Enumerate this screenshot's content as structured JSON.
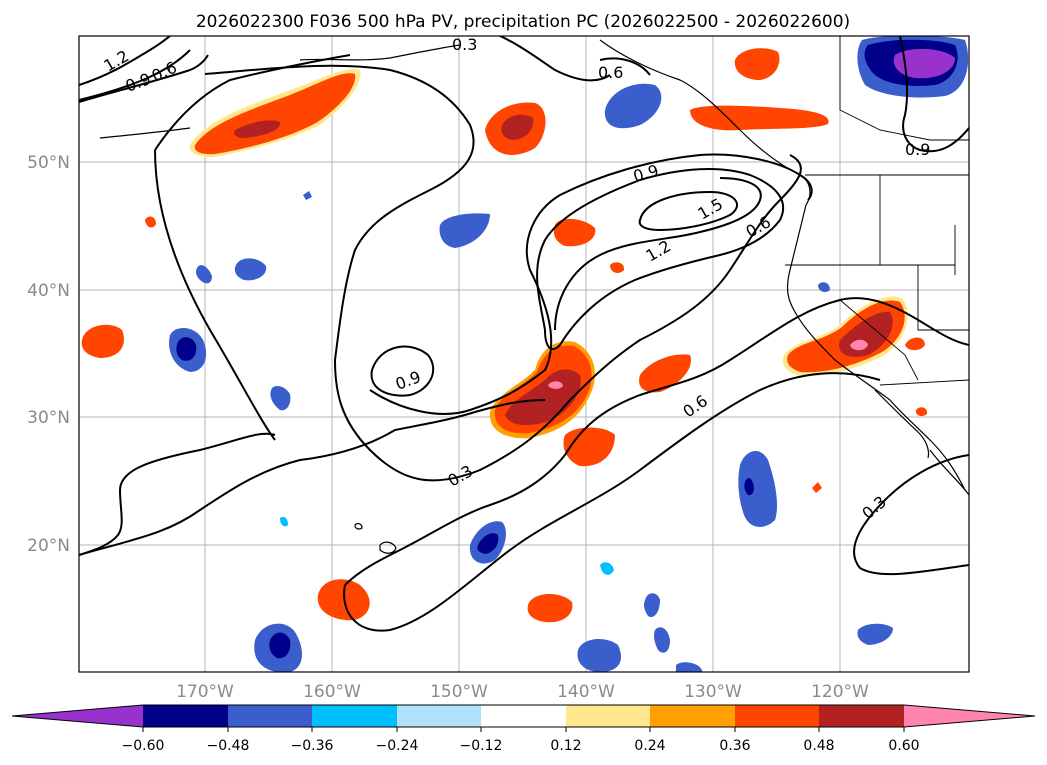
{
  "title": "2026022300 F036 500 hPa PV, precipitation PC (2026022500 - 2026022600)",
  "lat_labels": [
    "50°N",
    "40°N",
    "30°N",
    "20°N"
  ],
  "lon_labels": [
    "170°W",
    "160°W",
    "150°W",
    "140°W",
    "130°W",
    "120°W"
  ],
  "contour_labels": [
    "1.2",
    "0.9",
    "0.6",
    "0.3",
    "0.6",
    "0.9",
    "1.5",
    "1.2",
    "0.6",
    "0.9",
    "0.3",
    "0.6",
    "0.3",
    "0.9"
  ],
  "colorbar": {
    "ticks": [
      "−0.60",
      "−0.48",
      "−0.36",
      "−0.24",
      "−0.12",
      "0.12",
      "0.24",
      "0.36",
      "0.48",
      "0.60"
    ],
    "colors": [
      "#9932cc",
      "#00008b",
      "#3a5fcd",
      "#00bfff",
      "#afe1fa",
      "#ffffff",
      "#ffe88c",
      "#ffa000",
      "#ff4500",
      "#b22222",
      "#ff85b0"
    ]
  },
  "colors": {
    "neg_strong": "#00008b",
    "neg_mid": "#3a5fcd",
    "neg_light": "#00bfff",
    "neg_pale": "#afe1fa",
    "pos_pale": "#ffe88c",
    "pos_light": "#ffa000",
    "pos_mid": "#ff4500",
    "pos_strong": "#b22222",
    "pos_max": "#ff85b0",
    "neg_max": "#9932cc",
    "grid": "#b5b5b5",
    "axis_text": "#8a8a8a"
  }
}
